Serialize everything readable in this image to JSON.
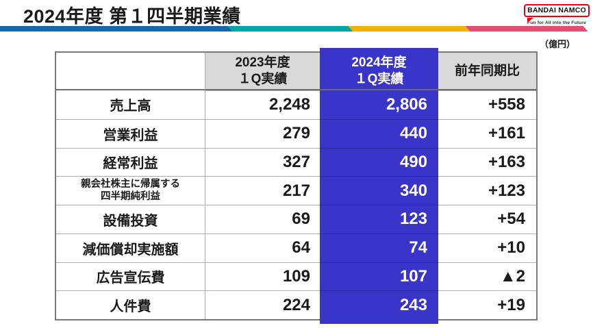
{
  "theme": {
    "accent_bar_blue": "#1566ad",
    "accent_bar_teal": "#00a7a7",
    "accent_bar_yellow": "#f2b200",
    "accent_bar_pink": "#e64d72",
    "highlight_blue": "#3a34c8",
    "header_gray": "#d9d9d9",
    "logo_red": "#e60012",
    "border_gray": "#7a7a7a",
    "row_line_gray": "#adadad",
    "text_black": "#1a1a1a"
  },
  "header": {
    "title": "2024年度 第１四半期業績"
  },
  "logo": {
    "brand": "BANDAI NAMCO",
    "tagline": "Fun for All into the Future"
  },
  "unit_label": "（億円）",
  "table": {
    "header": {
      "col_label": "",
      "col_2023_line1": "2023年度",
      "col_2023_line2": "１Q実績",
      "col_2024_line1": "2024年度",
      "col_2024_line2": "１Q実績",
      "col_yoy": "前年同期比"
    },
    "rows": [
      {
        "label": "売上高",
        "fy2023": "2,248",
        "fy2024": "2,806",
        "yoy": "+558"
      },
      {
        "label": "営業利益",
        "fy2023": "279",
        "fy2024": "440",
        "yoy": "+161"
      },
      {
        "label": "経常利益",
        "fy2023": "327",
        "fy2024": "490",
        "yoy": "+163"
      },
      {
        "label": "親会社株主に帰属する",
        "label2": "四半期純利益",
        "fy2023": "217",
        "fy2024": "340",
        "yoy": "+123"
      },
      {
        "label": "設備投資",
        "fy2023": "69",
        "fy2024": "123",
        "yoy": "+54"
      },
      {
        "label": "減価償却実施額",
        "fy2023": "64",
        "fy2024": "74",
        "yoy": "+10"
      },
      {
        "label": "広告宣伝費",
        "fy2023": "109",
        "fy2024": "107",
        "yoy": "▲2"
      },
      {
        "label": "人件費",
        "fy2023": "224",
        "fy2024": "243",
        "yoy": "+19"
      }
    ]
  }
}
